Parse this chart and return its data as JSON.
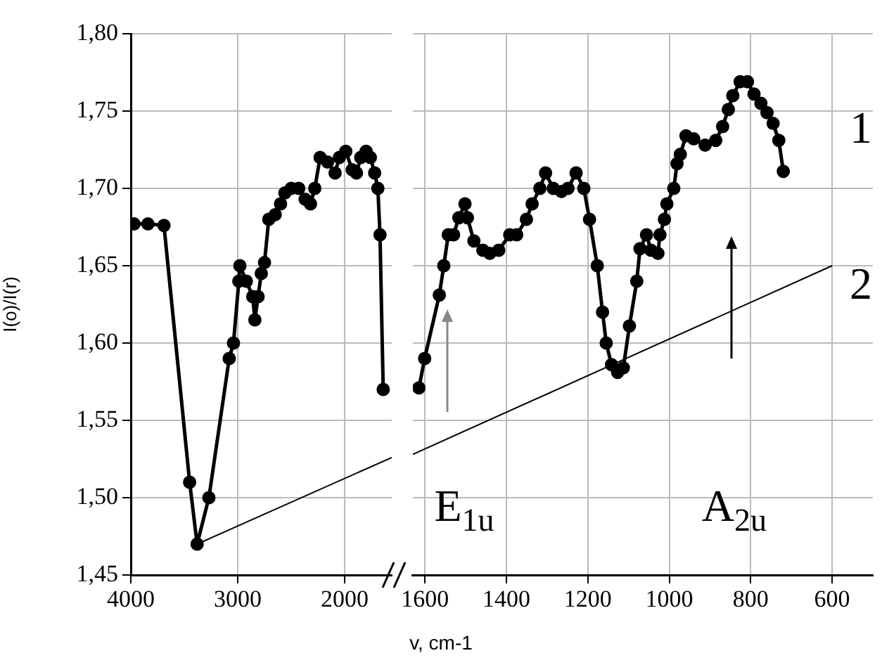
{
  "chart_data": [
    {
      "type": "line",
      "ylabel": "I(o)/I(r)",
      "xlim": [
        4000,
        1560
      ],
      "xticks": [
        4000,
        3000,
        2000
      ],
      "ylim": [
        1.45,
        1.8
      ],
      "yticks": [
        {
          "value": 1.45,
          "label": "1,45"
        },
        {
          "value": 1.5,
          "label": "1,50"
        },
        {
          "value": 1.55,
          "label": "1,55"
        },
        {
          "value": 1.6,
          "label": "1,60"
        },
        {
          "value": 1.65,
          "label": "1,65"
        },
        {
          "value": 1.7,
          "label": "1,70"
        },
        {
          "value": 1.75,
          "label": "1,75"
        },
        {
          "value": 1.8,
          "label": "1,80"
        }
      ],
      "grid": true,
      "legend": false,
      "series": [
        {
          "color": "#000000",
          "marker": "circle",
          "line_style": "solid",
          "x": [
            3970,
            3840,
            3690,
            3450,
            3380,
            3270,
            3080,
            3040,
            2990,
            2980,
            2920,
            2860,
            2840,
            2810,
            2780,
            2750,
            2710,
            2650,
            2600,
            2560,
            2500,
            2430,
            2370,
            2320,
            2280,
            2230,
            2160,
            2090,
            2050,
            1990,
            1930,
            1890,
            1850,
            1800,
            1760,
            1720,
            1690,
            1670,
            1640
          ],
          "values": [
            1.677,
            1.677,
            1.676,
            1.51,
            1.47,
            1.5,
            1.59,
            1.6,
            1.64,
            1.65,
            1.64,
            1.63,
            1.615,
            1.63,
            1.645,
            1.652,
            1.68,
            1.683,
            1.69,
            1.697,
            1.7,
            1.7,
            1.693,
            1.69,
            1.7,
            1.72,
            1.717,
            1.71,
            1.72,
            1.724,
            1.712,
            1.71,
            1.72,
            1.724,
            1.72,
            1.71,
            1.7,
            1.67,
            1.57
          ]
        },
        {
          "color": "#000000",
          "marker": "none",
          "line_style": "solid",
          "x": [
            3380,
            1560
          ],
          "values": [
            1.47,
            1.526
          ]
        }
      ]
    },
    {
      "type": "line",
      "xlabel": "v, cm-1",
      "xlim": [
        1630,
        500
      ],
      "xticks": [
        1600,
        1400,
        1200,
        1000,
        800,
        600
      ],
      "ylim": [
        1.45,
        1.8
      ],
      "yticks": [
        1.45,
        1.5,
        1.55,
        1.6,
        1.65,
        1.7,
        1.75,
        1.8
      ],
      "grid": true,
      "legend": false,
      "tick_labels": "x",
      "annotations": [
        "1",
        "2",
        "E$_{1u}$",
        "A$_{2u}$"
      ],
      "series": [
        {
          "color": "#000000",
          "marker": "circle",
          "line_style": "solid",
          "x": [
            1615,
            1601,
            1565,
            1554,
            1543,
            1530,
            1517,
            1502,
            1496,
            1480,
            1458,
            1441,
            1419,
            1392,
            1375,
            1351,
            1337,
            1318,
            1304,
            1285,
            1265,
            1249,
            1229,
            1210,
            1196,
            1177,
            1164,
            1155,
            1142,
            1127,
            1113,
            1098,
            1080,
            1072,
            1056,
            1045,
            1028,
            1023,
            1012,
            1006,
            989,
            981,
            973,
            959,
            940,
            912,
            886,
            869,
            855,
            844,
            826,
            808,
            792,
            775,
            760,
            745,
            731,
            720
          ],
          "values": [
            1.571,
            1.59,
            1.631,
            1.65,
            1.67,
            1.67,
            1.681,
            1.69,
            1.681,
            1.666,
            1.66,
            1.658,
            1.66,
            1.67,
            1.67,
            1.68,
            1.69,
            1.7,
            1.71,
            1.7,
            1.698,
            1.7,
            1.71,
            1.7,
            1.68,
            1.65,
            1.62,
            1.6,
            1.586,
            1.581,
            1.584,
            1.611,
            1.64,
            1.661,
            1.67,
            1.66,
            1.658,
            1.67,
            1.68,
            1.69,
            1.7,
            1.716,
            1.722,
            1.734,
            1.732,
            1.728,
            1.731,
            1.74,
            1.751,
            1.76,
            1.769,
            1.769,
            1.761,
            1.755,
            1.749,
            1.742,
            1.731,
            1.711
          ]
        },
        {
          "color": "#000000",
          "marker": "none",
          "line_style": "solid",
          "x": [
            1630,
            600
          ],
          "values": [
            1.528,
            1.65
          ]
        }
      ]
    }
  ]
}
